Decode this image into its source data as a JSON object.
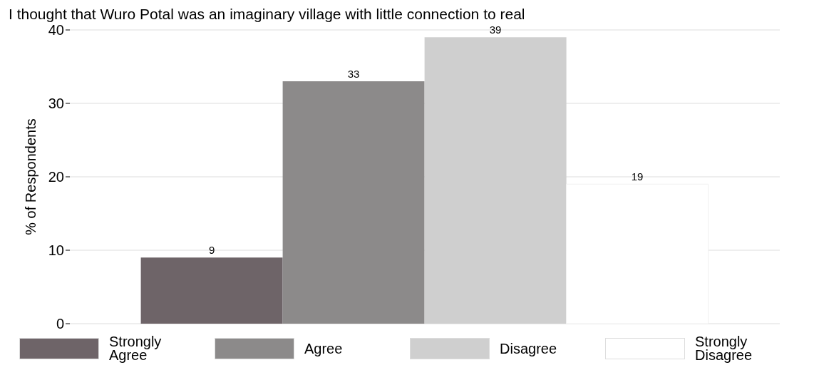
{
  "chart_data": {
    "type": "bar",
    "title": "I thought that Wuro Potal was an imaginary village with little connection to real",
    "ylabel": "% of Respondents",
    "categories": [
      null
    ],
    "series": [
      {
        "name": "Strongly Agree",
        "color": "#6e6468",
        "values": [
          9
        ]
      },
      {
        "name": "Agree",
        "color": "#8c8a8a",
        "values": [
          33
        ]
      },
      {
        "name": "Disagree",
        "color": "#cfcfcf",
        "values": [
          39
        ]
      },
      {
        "name": "Strongly Disagree",
        "color": "#ffffff",
        "values": [
          19
        ]
      }
    ],
    "ylim": [
      0,
      40
    ],
    "yticks": [
      0,
      10,
      20,
      30,
      40
    ],
    "grid": "y",
    "legend": "bottom",
    "data_labels": true
  }
}
